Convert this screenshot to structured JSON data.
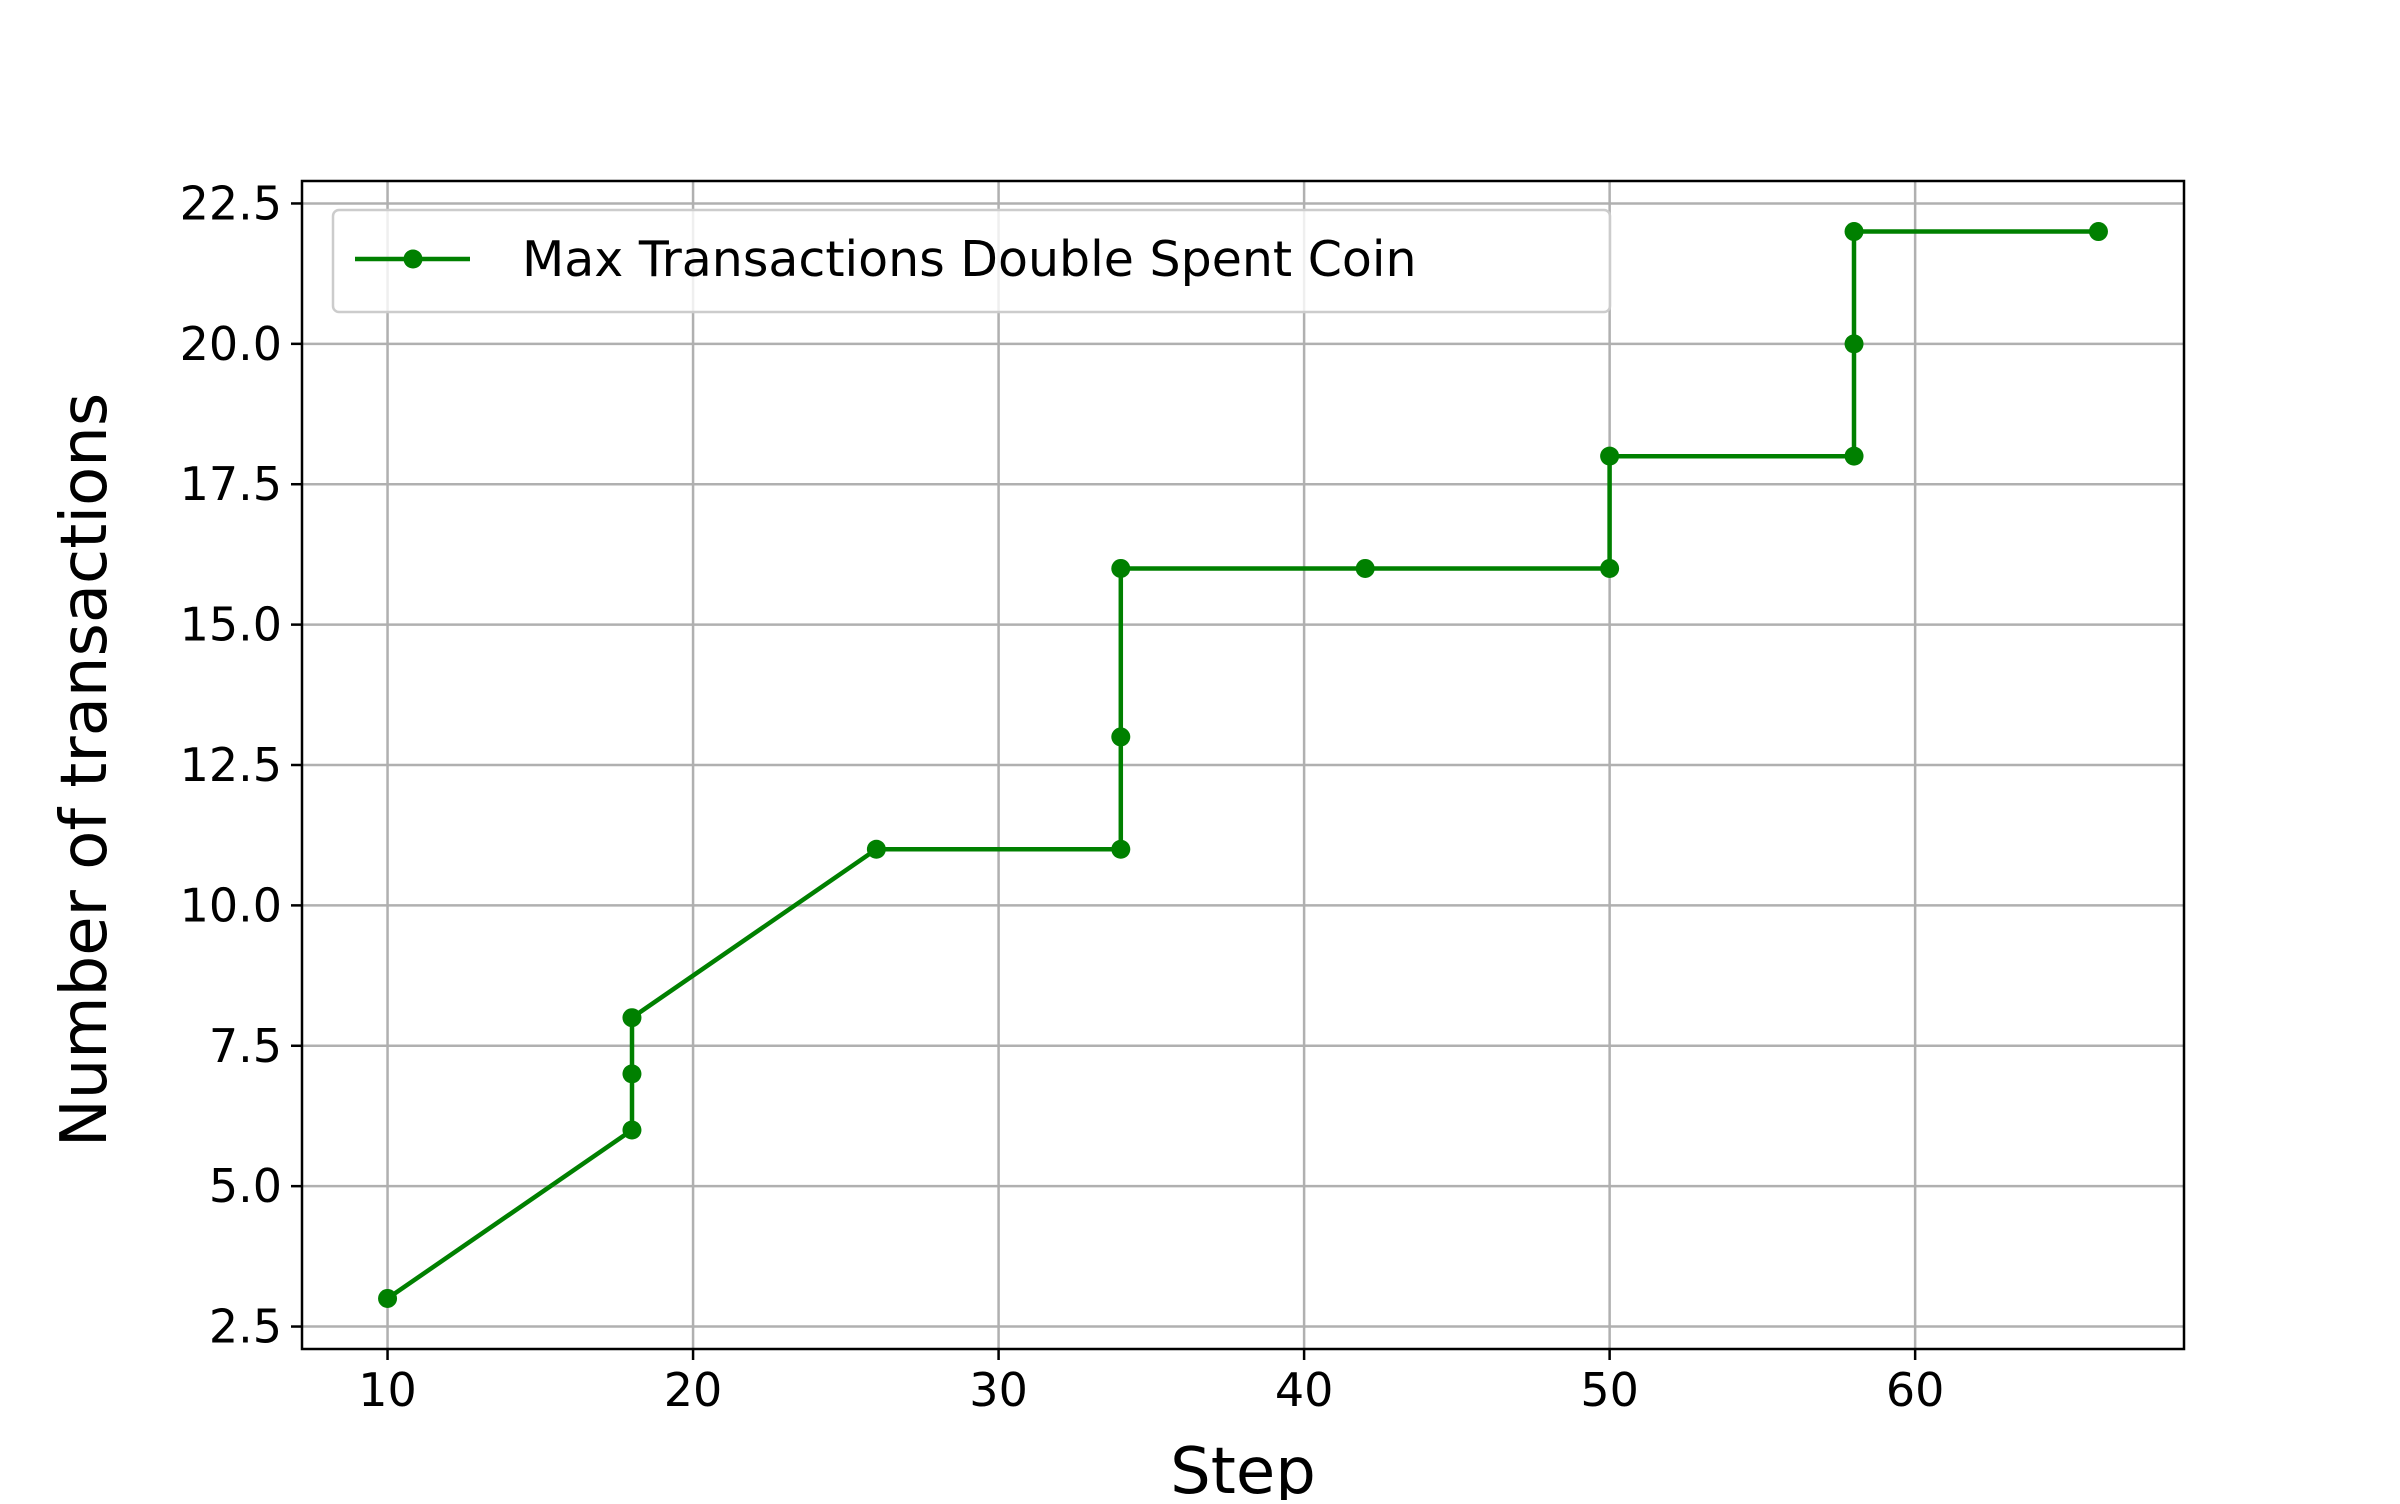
{
  "chart_data": {
    "type": "line",
    "xlabel": "Step",
    "ylabel": "Number of transactions",
    "xlim": [
      7.2,
      68.8
    ],
    "ylim": [
      2.1,
      22.9
    ],
    "xticks": [
      10,
      20,
      30,
      40,
      50,
      60
    ],
    "yticks": [
      2.5,
      5.0,
      7.5,
      10.0,
      12.5,
      15.0,
      17.5,
      20.0,
      22.5
    ],
    "xtick_labels": [
      "10",
      "20",
      "30",
      "40",
      "50",
      "60"
    ],
    "ytick_labels": [
      "2.5",
      "5.0",
      "7.5",
      "10.0",
      "12.5",
      "15.0",
      "17.5",
      "20.0",
      "22.5"
    ],
    "grid": true,
    "legend_position": "upper left",
    "series": [
      {
        "name": "Max Transactions Double Spent Coin",
        "color": "#008000",
        "marker": "circle",
        "x": [
          10,
          18,
          18,
          18,
          26,
          34,
          34,
          34,
          42,
          50,
          50,
          58,
          58,
          58,
          66
        ],
        "y": [
          3,
          6,
          7,
          8,
          11,
          11,
          13,
          16,
          16,
          16,
          18,
          18,
          20,
          22,
          22
        ]
      }
    ]
  }
}
